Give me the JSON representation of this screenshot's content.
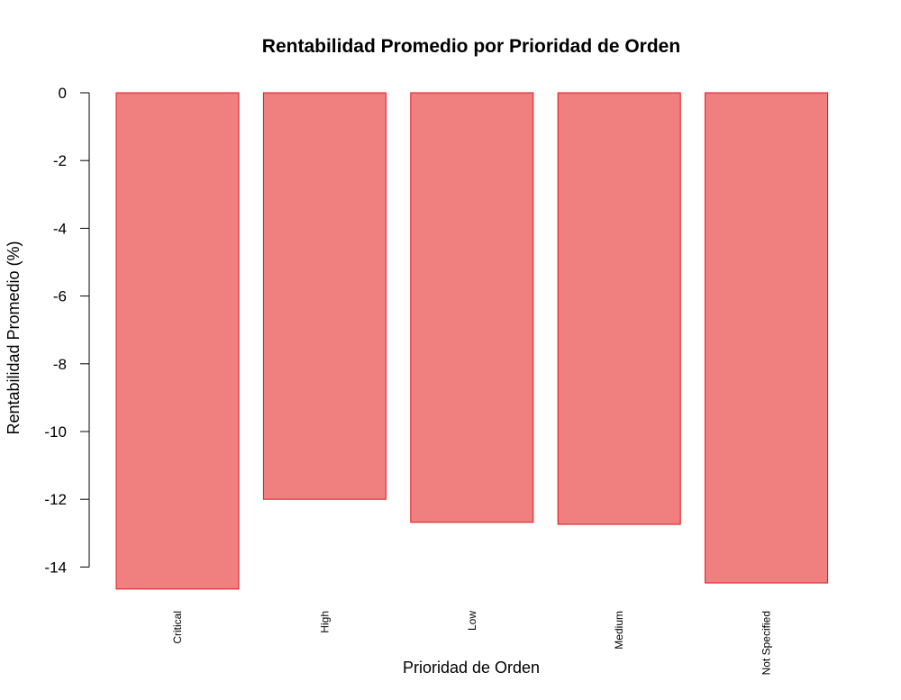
{
  "chart_data": {
    "type": "bar",
    "title": "Rentabilidad Promedio por Prioridad de Orden",
    "xlabel": "Prioridad de Orden",
    "ylabel": "Rentabilidad Promedio (%)",
    "categories": [
      "Critical",
      "High",
      "Low",
      "Medium",
      "Not Specified"
    ],
    "values": [
      -14.65,
      -12.0,
      -12.68,
      -12.74,
      -14.47
    ],
    "ylim": [
      -14,
      0
    ],
    "yticks": [
      0,
      -2,
      -4,
      -6,
      -8,
      -10,
      -12,
      -14
    ],
    "bar_fill": "#f08080",
    "bar_stroke": "#e0131e",
    "grid": false,
    "legend": "none"
  }
}
